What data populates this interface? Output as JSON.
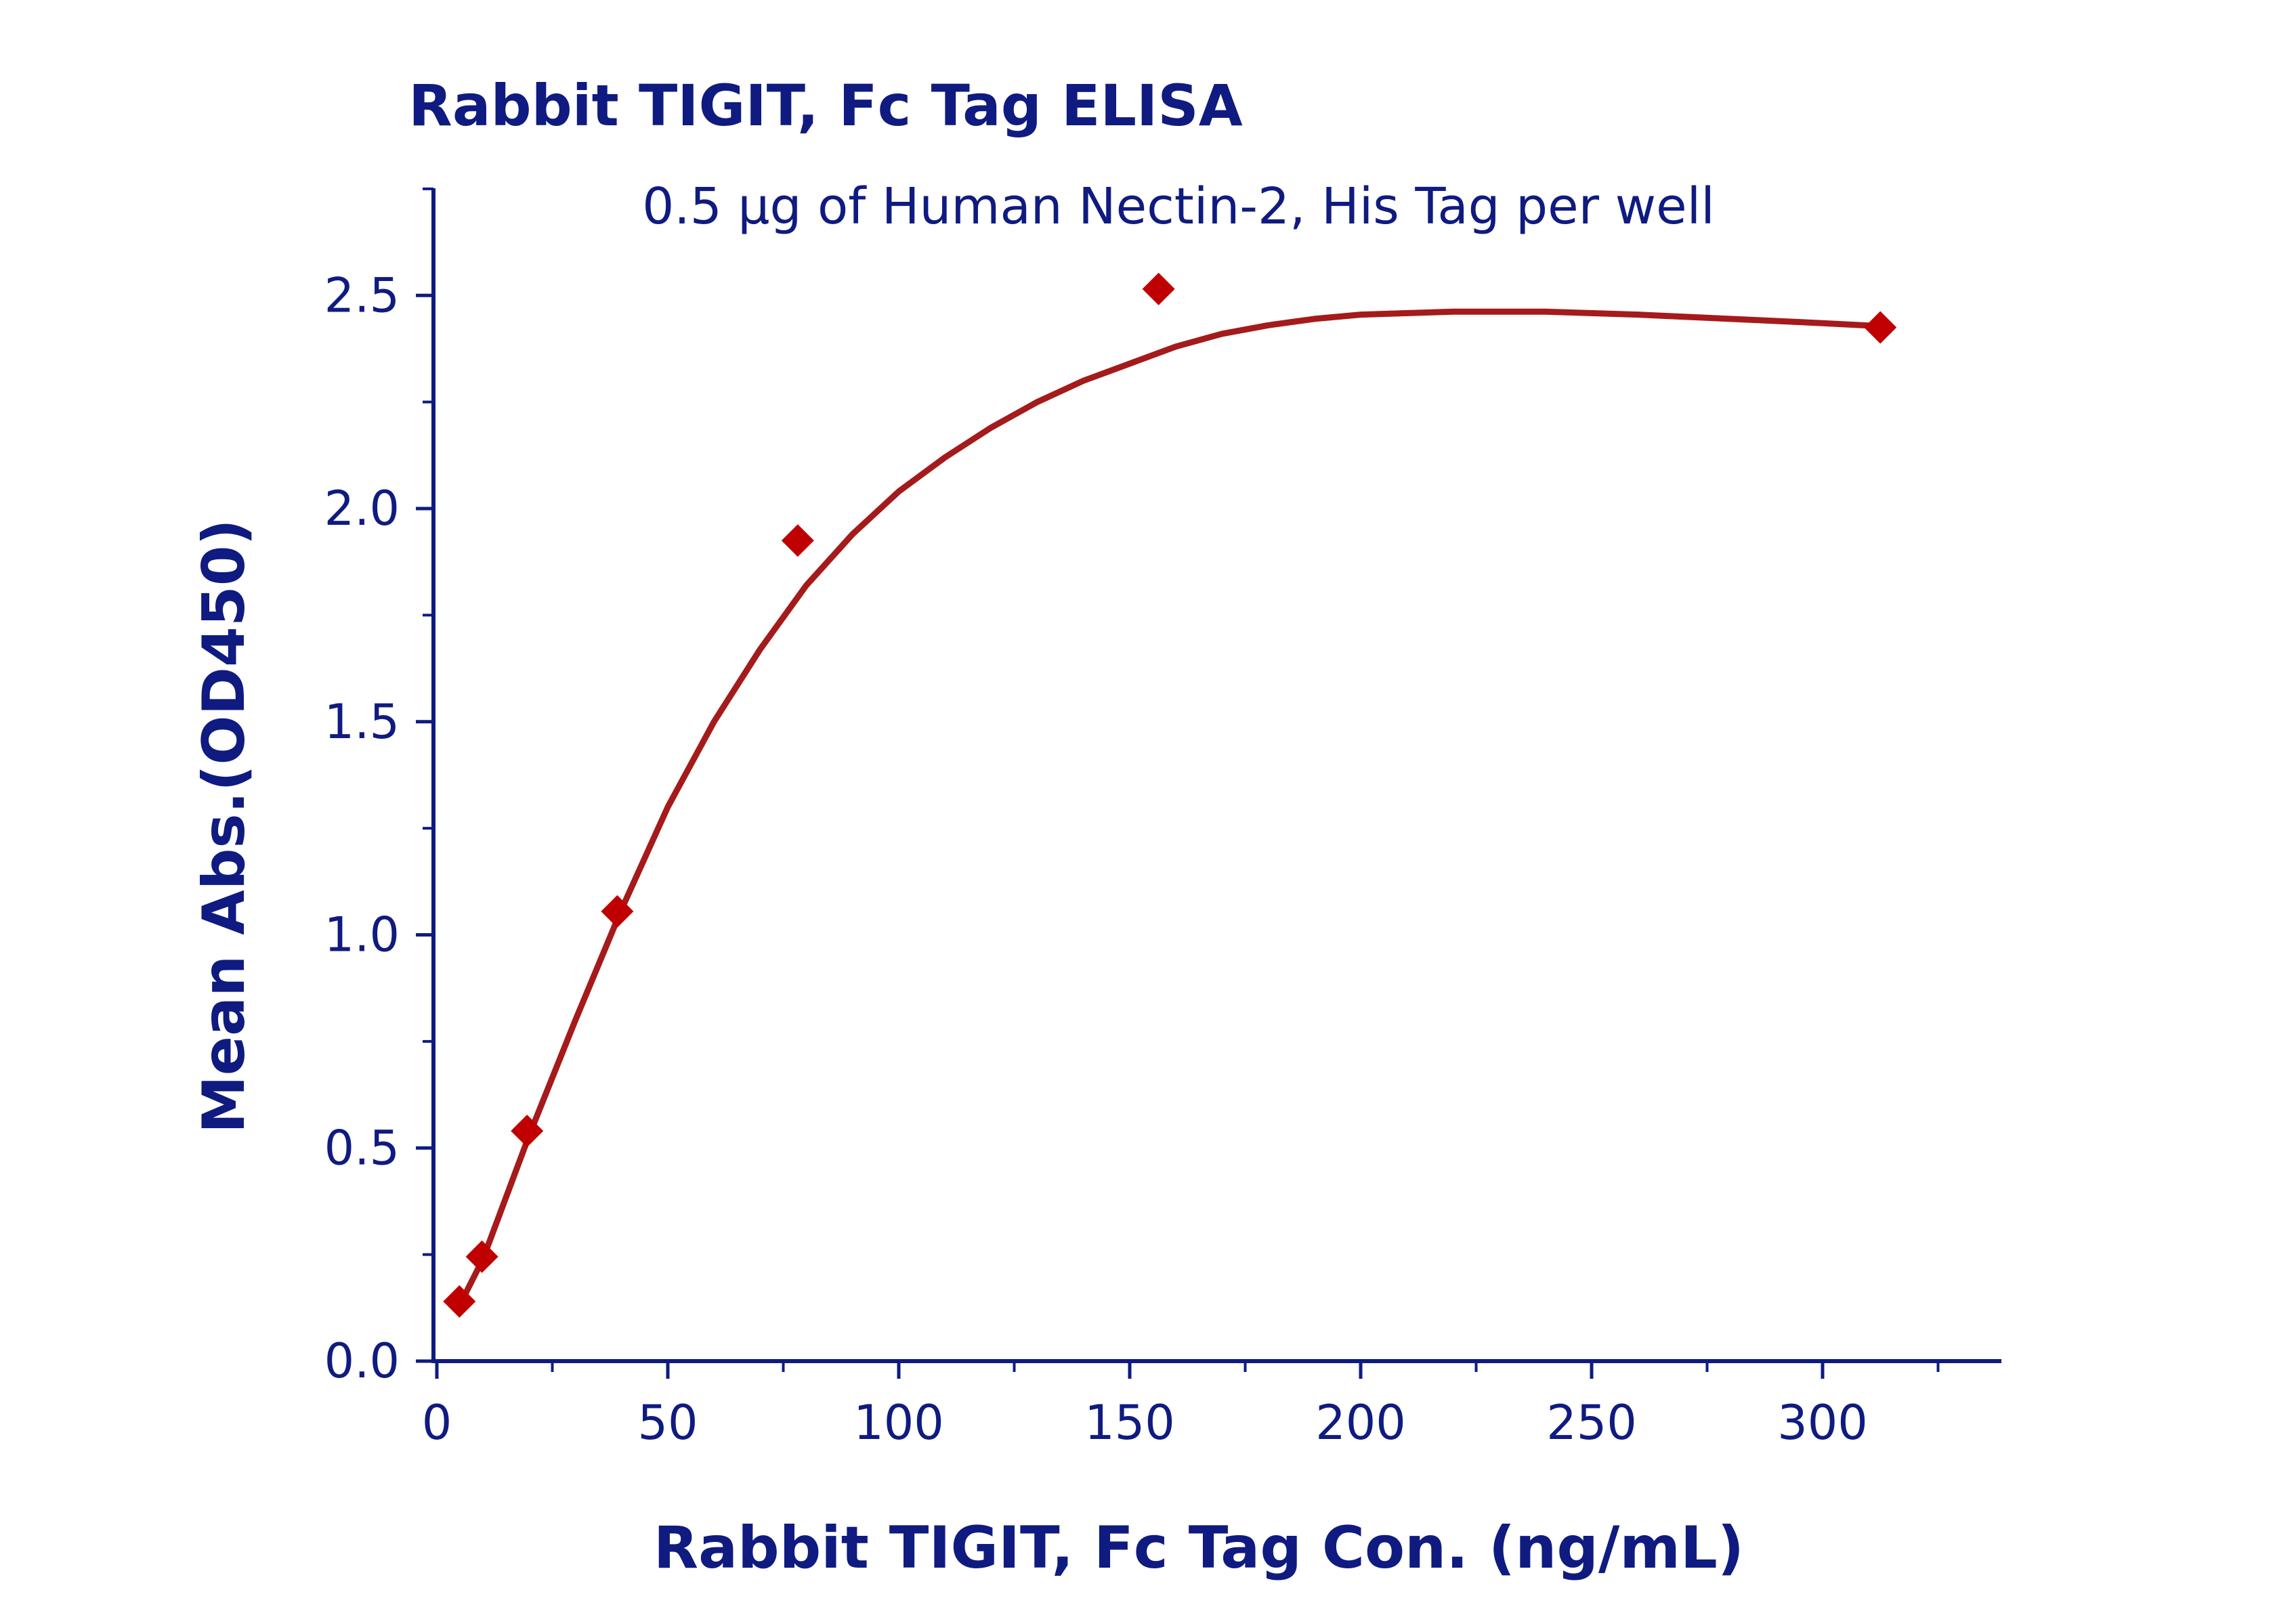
{
  "chart_data": {
    "type": "scatter",
    "title": "Rabbit TIGIT, Fc Tag ELISA",
    "subtitle": "0.5 μg of Human Nectin-2, His Tag per well",
    "xlabel": "Rabbit TIGIT, Fc Tag Con. (ng/mL)",
    "ylabel": "Mean Abs.(OD450)",
    "xlim": [
      -5,
      340
    ],
    "ylim": [
      0,
      2.75
    ],
    "x_ticks": [
      "0",
      "50",
      "100",
      "150",
      "200",
      "250",
      "300"
    ],
    "y_ticks": [
      "0.0",
      "0.5",
      "1.0",
      "1.5",
      "2.0",
      "2.5"
    ],
    "grid": false,
    "series": [
      {
        "points": [
          {
            "x": 4.88,
            "y": 0.14
          },
          {
            "x": 9.77,
            "y": 0.245
          },
          {
            "x": 19.53,
            "y": 0.54
          },
          {
            "x": 39.06,
            "y": 1.055
          },
          {
            "x": 78.13,
            "y": 1.925
          },
          {
            "x": 156.25,
            "y": 2.515
          },
          {
            "x": 312.5,
            "y": 2.425
          }
        ],
        "fit_curve": [
          [
            4.88,
            0.13
          ],
          [
            10,
            0.24
          ],
          [
            20,
            0.53
          ],
          [
            30,
            0.8
          ],
          [
            40,
            1.06
          ],
          [
            50,
            1.3
          ],
          [
            60,
            1.5
          ],
          [
            70,
            1.67
          ],
          [
            80,
            1.82
          ],
          [
            90,
            1.94
          ],
          [
            100,
            2.04
          ],
          [
            110,
            2.12
          ],
          [
            120,
            2.19
          ],
          [
            130,
            2.25
          ],
          [
            140,
            2.3
          ],
          [
            150,
            2.34
          ],
          [
            160,
            2.38
          ],
          [
            170,
            2.41
          ],
          [
            180,
            2.43
          ],
          [
            190,
            2.445
          ],
          [
            200,
            2.455
          ],
          [
            220,
            2.462
          ],
          [
            240,
            2.462
          ],
          [
            260,
            2.455
          ],
          [
            280,
            2.445
          ],
          [
            300,
            2.435
          ],
          [
            312.5,
            2.428
          ]
        ],
        "color": "#c00000",
        "line_color": "#a51a1a"
      }
    ]
  },
  "colors": {
    "axis": "#0f1b80",
    "text": "#0f1b80"
  }
}
